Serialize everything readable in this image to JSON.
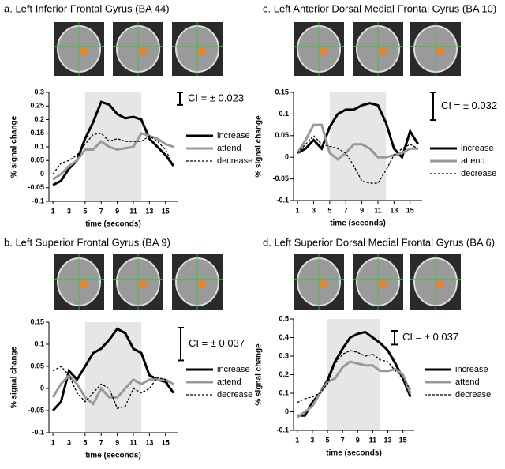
{
  "chart_data": [
    {
      "type": "line",
      "title": "a. Left Inferior Frontal Gyrus (BA 44)",
      "xlabel": "time (seconds)",
      "ylabel": "% signal change",
      "x": [
        1,
        2,
        3,
        4,
        5,
        6,
        7,
        8,
        9,
        10,
        11,
        12,
        13,
        14,
        15,
        16
      ],
      "xlim": [
        0.5,
        16.5
      ],
      "xticks": [
        1,
        3,
        5,
        7,
        9,
        11,
        13,
        15
      ],
      "ylim": [
        -0.1,
        0.3
      ],
      "yticks": [
        -0.1,
        -0.05,
        0,
        0.05,
        0.1,
        0.15,
        0.2,
        0.25,
        0.3
      ],
      "shade": [
        5,
        12
      ],
      "ci": {
        "value": 0.023,
        "label": "CI = ± 0.023"
      },
      "series": [
        {
          "name": "increase",
          "color": "#000000",
          "width": 3,
          "dash": false,
          "values": [
            -0.04,
            -0.025,
            0.02,
            0.05,
            0.13,
            0.19,
            0.265,
            0.255,
            0.22,
            0.205,
            0.21,
            0.2,
            0.13,
            0.1,
            0.07,
            0.03
          ]
        },
        {
          "name": "attend",
          "color": "#999999",
          "width": 3,
          "dash": false,
          "values": [
            -0.02,
            0.0,
            0.03,
            0.05,
            0.09,
            0.09,
            0.12,
            0.1,
            0.09,
            0.095,
            0.1,
            0.15,
            0.14,
            0.13,
            0.11,
            0.1
          ]
        },
        {
          "name": "decrease",
          "color": "#000000",
          "width": 1.3,
          "dash": true,
          "values": [
            0.0,
            0.04,
            0.05,
            0.07,
            0.11,
            0.145,
            0.15,
            0.12,
            0.13,
            0.12,
            0.12,
            0.12,
            0.14,
            0.12,
            0.09,
            0.03
          ]
        }
      ]
    },
    {
      "type": "line",
      "title": "c. Left Anterior Dorsal Medial Frontal Gyrus (BA 10)",
      "xlabel": "time (seconds)",
      "ylabel": "% signal change",
      "x": [
        1,
        2,
        3,
        4,
        5,
        6,
        7,
        8,
        9,
        10,
        11,
        12,
        13,
        14,
        15,
        16
      ],
      "xlim": [
        0.5,
        16.5
      ],
      "xticks": [
        1,
        3,
        5,
        7,
        9,
        11,
        13,
        15
      ],
      "ylim": [
        -0.1,
        0.15
      ],
      "yticks": [
        -0.1,
        -0.05,
        0,
        0.05,
        0.1,
        0.15
      ],
      "shade": [
        5,
        12
      ],
      "ci": {
        "value": 0.032,
        "label": "CI = ± 0.032"
      },
      "series": [
        {
          "name": "increase",
          "color": "#000000",
          "width": 3,
          "dash": false,
          "values": [
            0.01,
            0.02,
            0.04,
            0.02,
            0.07,
            0.1,
            0.11,
            0.11,
            0.12,
            0.125,
            0.12,
            0.08,
            0.02,
            0.0,
            0.06,
            0.03
          ]
        },
        {
          "name": "attend",
          "color": "#999999",
          "width": 3,
          "dash": false,
          "values": [
            0.01,
            0.04,
            0.075,
            0.075,
            0.01,
            -0.005,
            0.01,
            0.03,
            0.03,
            0.02,
            0.0,
            0.0,
            0.005,
            0.01,
            0.02,
            0.02
          ]
        },
        {
          "name": "decrease",
          "color": "#000000",
          "width": 1.3,
          "dash": true,
          "values": [
            0.01,
            0.03,
            0.05,
            0.03,
            0.025,
            0.02,
            0.01,
            -0.02,
            -0.055,
            -0.06,
            -0.06,
            -0.03,
            0.005,
            0.02,
            0.03,
            0.02
          ]
        }
      ]
    },
    {
      "type": "line",
      "title": "b. Left Superior Frontal Gyrus (BA 9)",
      "xlabel": "time (seconds)",
      "ylabel": "% signal change",
      "x": [
        1,
        2,
        3,
        4,
        5,
        6,
        7,
        8,
        9,
        10,
        11,
        12,
        13,
        14,
        15,
        16
      ],
      "xlim": [
        0.5,
        16.5
      ],
      "xticks": [
        1,
        3,
        5,
        7,
        9,
        11,
        13,
        15
      ],
      "ylim": [
        -0.1,
        0.15
      ],
      "yticks": [
        -0.1,
        -0.05,
        0,
        0.05,
        0.1,
        0.15
      ],
      "shade": [
        5,
        12
      ],
      "ci": {
        "value": 0.037,
        "label": "CI = ± 0.037"
      },
      "series": [
        {
          "name": "increase",
          "color": "#000000",
          "width": 3,
          "dash": false,
          "values": [
            -0.05,
            -0.03,
            0.04,
            0.02,
            0.05,
            0.08,
            0.09,
            0.11,
            0.135,
            0.125,
            0.09,
            0.08,
            0.03,
            0.02,
            0.015,
            -0.01
          ]
        },
        {
          "name": "attend",
          "color": "#999999",
          "width": 3,
          "dash": false,
          "values": [
            -0.02,
            0.01,
            0.03,
            0.01,
            -0.02,
            -0.035,
            0.0,
            -0.02,
            -0.02,
            0.0,
            0.02,
            0.01,
            0.02,
            0.02,
            0.02,
            0.01
          ]
        },
        {
          "name": "decrease",
          "color": "#000000",
          "width": 1.3,
          "dash": true,
          "values": [
            0.04,
            0.05,
            0.03,
            -0.01,
            -0.03,
            -0.01,
            0.01,
            0.0,
            -0.045,
            -0.04,
            0.0,
            -0.01,
            0.0,
            0.025,
            0.02,
            -0.01
          ]
        }
      ]
    },
    {
      "type": "line",
      "title": "d. Left Superior Dorsal Medial Frontal Gyrus (BA 6)",
      "xlabel": "time (seconds)",
      "ylabel": "% signal change",
      "x": [
        1,
        2,
        3,
        4,
        5,
        6,
        7,
        8,
        9,
        10,
        11,
        12,
        13,
        14,
        15,
        16
      ],
      "xlim": [
        0.5,
        16.5
      ],
      "xticks": [
        1,
        3,
        5,
        7,
        9,
        11,
        13,
        15
      ],
      "ylim": [
        -0.1,
        0.5
      ],
      "yticks": [
        -0.1,
        0,
        0.1,
        0.2,
        0.3,
        0.4,
        0.5
      ],
      "shade": [
        5,
        12
      ],
      "ci": {
        "value": 0.037,
        "label": "CI = ± 0.037"
      },
      "series": [
        {
          "name": "increase",
          "color": "#000000",
          "width": 3,
          "dash": false,
          "values": [
            -0.02,
            -0.02,
            0.05,
            0.1,
            0.17,
            0.27,
            0.34,
            0.4,
            0.42,
            0.43,
            0.4,
            0.37,
            0.33,
            0.26,
            0.18,
            0.08
          ]
        },
        {
          "name": "attend",
          "color": "#999999",
          "width": 3,
          "dash": false,
          "values": [
            -0.03,
            0.0,
            0.03,
            0.1,
            0.16,
            0.18,
            0.24,
            0.27,
            0.26,
            0.25,
            0.25,
            0.22,
            0.22,
            0.23,
            0.2,
            0.1
          ]
        },
        {
          "name": "decrease",
          "color": "#000000",
          "width": 1.3,
          "dash": true,
          "values": [
            0.05,
            0.07,
            0.08,
            0.1,
            0.15,
            0.26,
            0.31,
            0.33,
            0.32,
            0.3,
            0.31,
            0.28,
            0.27,
            0.22,
            0.18,
            0.12
          ]
        }
      ]
    }
  ]
}
